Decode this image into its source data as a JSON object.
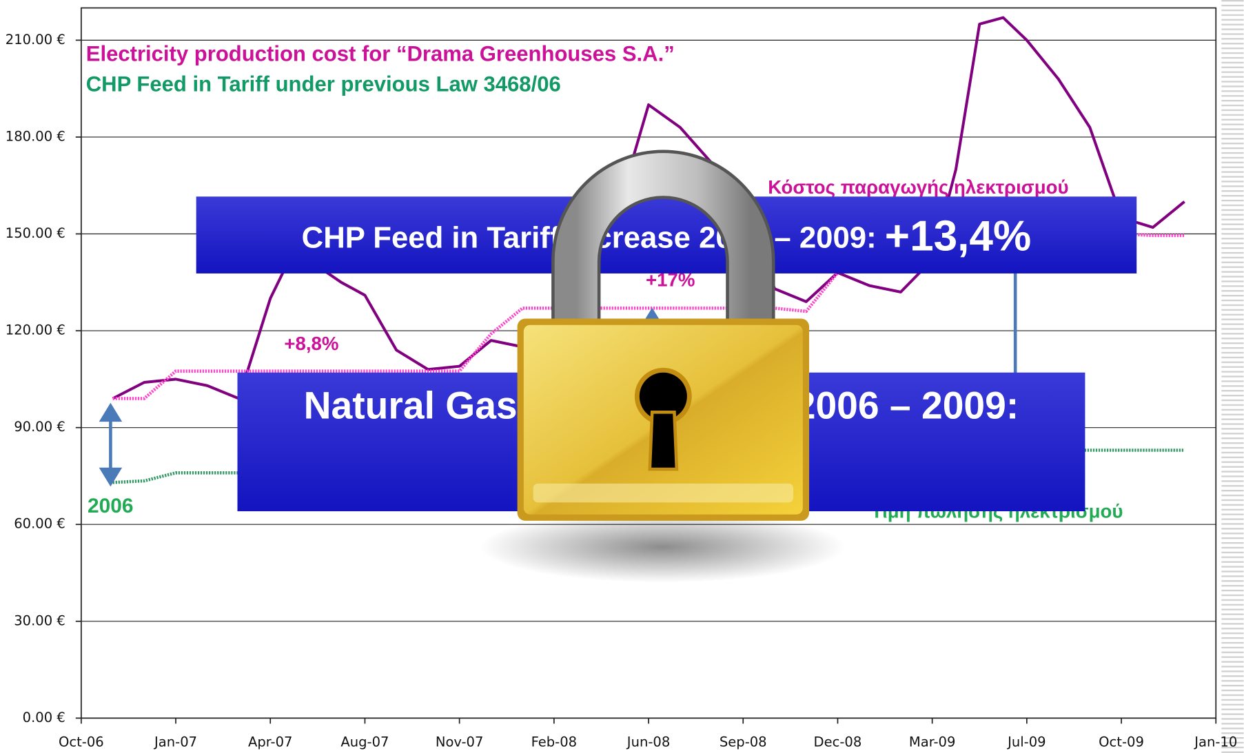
{
  "chart_data": {
    "type": "line",
    "x": [
      "2006-11",
      "2006-12",
      "2007-01",
      "2007-02",
      "2007-03",
      "2007-04",
      "2007-05",
      "2007-06",
      "2007-07",
      "2007-08",
      "2007-09",
      "2007-10",
      "2007-11",
      "2007-12",
      "2008-01",
      "2008-02",
      "2008-03",
      "2008-04",
      "2008-05",
      "2008-06",
      "2008-07",
      "2008-08",
      "2008-09",
      "2008-10",
      "2008-11",
      "2008-12",
      "2009-01",
      "2009-02",
      "2009-03",
      "2009-04",
      "2009-05",
      "2009-06",
      "2009-07",
      "2009-08",
      "2009-09",
      "2009-10",
      "2009-11",
      "2009-12"
    ],
    "series": [
      {
        "name": "Κόστος παραγωγής ηλεκτρισμού",
        "color": "#800080",
        "values": [
          99,
          104,
          105,
          103,
          99,
          130,
          145,
          140,
          135,
          131,
          114,
          108,
          109,
          117,
          115,
          118,
          125,
          140,
          165,
          190,
          183,
          172,
          160,
          133,
          129,
          138,
          134,
          132,
          142,
          170,
          215,
          217,
          210,
          198,
          183,
          155,
          152,
          160
        ]
      },
      {
        "color": "#ff44cc",
        "values": [
          99,
          99,
          107.5,
          107.5,
          107.5,
          107.5,
          107.5,
          107.5,
          107.5,
          107.5,
          107.5,
          107.5,
          107.5,
          119,
          127,
          127,
          127,
          127,
          127,
          127,
          127,
          127,
          127,
          127,
          126,
          138,
          150,
          150,
          150,
          150,
          150,
          150,
          150,
          150,
          150,
          150,
          149.5,
          149.5
        ]
      },
      {
        "name": "Τιμή πώλησης ηλεκτρισμού",
        "color": "#339966",
        "values": [
          73,
          73.5,
          76,
          76,
          76,
          76,
          76,
          76,
          76,
          76,
          76,
          76,
          76,
          76,
          79,
          79,
          79,
          79,
          79,
          79,
          79,
          79,
          79,
          79,
          79,
          79,
          83,
          83,
          83,
          83,
          83,
          83,
          83,
          83,
          83,
          83,
          83,
          83
        ]
      }
    ],
    "xticks": [
      {
        "value": "2006-10",
        "label": "Oct-06"
      },
      {
        "value": "2007-01",
        "label": "Jan-07"
      },
      {
        "value": "2007-04",
        "label": "Apr-07"
      },
      {
        "value": "2007-08",
        "label": "Aug-07"
      },
      {
        "value": "2007-11",
        "label": "Nov-07"
      },
      {
        "value": "2008-02",
        "label": "Feb-08"
      },
      {
        "value": "2008-06",
        "label": "Jun-08"
      },
      {
        "value": "2008-09",
        "label": "Sep-08"
      },
      {
        "value": "2008-12",
        "label": "Dec-08"
      },
      {
        "value": "2009-03",
        "label": "Mar-09"
      },
      {
        "value": "2009-07",
        "label": "Jul-09"
      },
      {
        "value": "2009-10",
        "label": "Oct-09"
      },
      {
        "value": "2010-01",
        "label": "Jan-10"
      }
    ],
    "ylim": [
      0,
      220
    ],
    "yticks": [
      {
        "value": 0,
        "label": "0.00 €"
      },
      {
        "value": 30,
        "label": "30.00 €"
      },
      {
        "value": 60,
        "label": "60.00 €"
      },
      {
        "value": 90,
        "label": "90.00 €"
      },
      {
        "value": 120,
        "label": "120.00 €"
      },
      {
        "value": 150,
        "label": "150.00 €"
      },
      {
        "value": 180,
        "label": "180.00 €"
      },
      {
        "value": 210,
        "label": "210.00 €"
      }
    ],
    "grid": true,
    "annotations": [
      {
        "text": "Electricity production cost for “Drama Greenhouses S.A.”",
        "color": "#cc1199"
      },
      {
        "text": "CHP Feed in Tariff under  previous Law 3468/06",
        "color": "#119966"
      },
      {
        "text": "+8,8%",
        "color": "#cc1199"
      },
      {
        "text": "+17%",
        "color": "#cc1199"
      },
      {
        "text": "2006",
        "color": "#22aa55"
      }
    ],
    "boxes": [
      {
        "text": "CHP Feed in Tariff increase 2006 – 2009: ",
        "highlight": "+13,4%"
      },
      {
        "text": "Natural Gas price increase 2006 – 2009:"
      }
    ]
  }
}
